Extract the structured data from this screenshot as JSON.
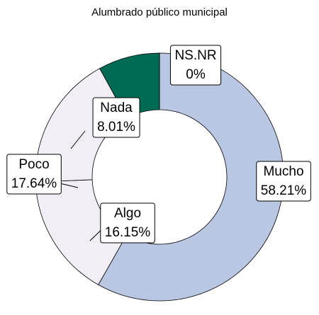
{
  "chart_data": {
    "type": "donut",
    "title": "Alumbrado público municipal",
    "categories": [
      "Mucho",
      "Algo",
      "Poco",
      "Nada",
      "NS.NR"
    ],
    "values": [
      58.21,
      16.15,
      17.64,
      8.01,
      0
    ],
    "value_labels": [
      "58.21%",
      "16.15%",
      "17.64%",
      "8.01%",
      "0%"
    ],
    "colors": [
      "#b9c7e3",
      "#f2eef6",
      "#f2eef6",
      "#006b55",
      "#6fa9d5"
    ]
  }
}
